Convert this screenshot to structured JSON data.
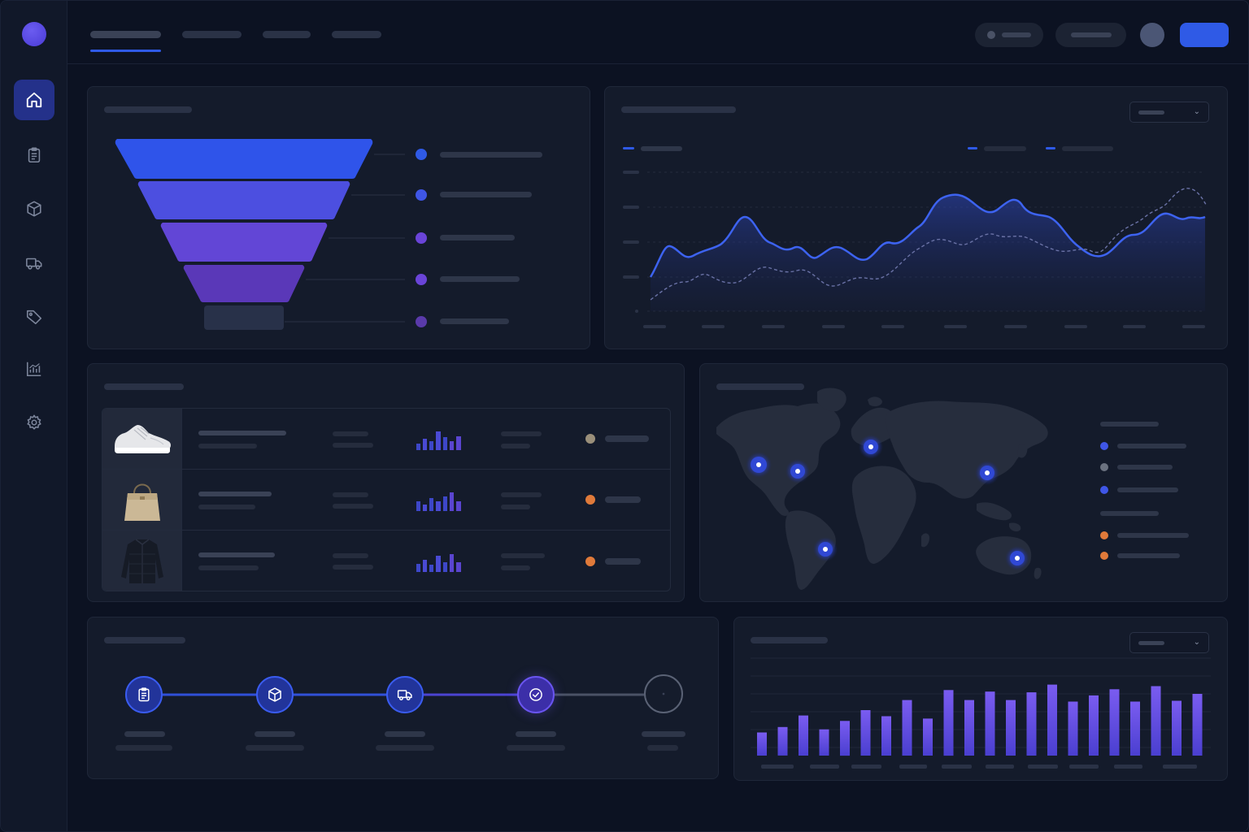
{
  "sidebar": {
    "items": [
      {
        "icon": "home-icon",
        "active": true
      },
      {
        "icon": "clipboard-icon",
        "active": false
      },
      {
        "icon": "box-icon",
        "active": false
      },
      {
        "icon": "truck-icon",
        "active": false
      },
      {
        "icon": "tag-icon",
        "active": false
      },
      {
        "icon": "analytics-icon",
        "active": false
      },
      {
        "icon": "gear-icon",
        "active": false
      }
    ]
  },
  "colors": {
    "accent": "#2f5ae6",
    "funnel": [
      "#2f54ea",
      "#4c4fe0",
      "#6246d6",
      "#5a38b8",
      "#283149"
    ],
    "legend_dots": [
      "#2f5ae6",
      "#3f56e6",
      "#6a44d8",
      "#6a44d8",
      "#5a3aaa"
    ],
    "orange": "#e07a3a",
    "grey_dot": "#9a8f7a",
    "bars": "#6b53e8"
  },
  "products": [
    {
      "image": "sneaker",
      "status_color": "#9a8f7a"
    },
    {
      "image": "handbag",
      "status_color": "#e07a3a"
    },
    {
      "image": "jacket",
      "status_color": "#e07a3a"
    }
  ],
  "map": {
    "legend_colors": [
      "#3f56e6",
      "#6b7280",
      "#3f56e6",
      "#e07a3a",
      "#e07a3a"
    ]
  },
  "stepper": {
    "steps": [
      {
        "icon": "clipboard-icon",
        "state": "done"
      },
      {
        "icon": "box-icon",
        "state": "done"
      },
      {
        "icon": "truck-icon",
        "state": "done"
      },
      {
        "icon": "check-icon",
        "state": "current"
      },
      {
        "icon": "pending-icon",
        "state": "pending"
      }
    ]
  },
  "bar_chart": {
    "type": "bar",
    "values": [
      30,
      37,
      52,
      34,
      45,
      59,
      51,
      72,
      48,
      85,
      72,
      83,
      72,
      82,
      92,
      70,
      78,
      86,
      70,
      90,
      71,
      80
    ]
  }
}
